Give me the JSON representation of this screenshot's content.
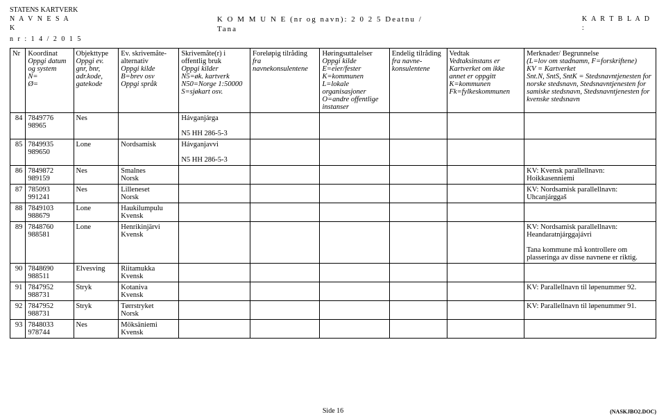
{
  "meta": {
    "agency": "STATENS KARTVERK",
    "navnesak_label": "N A V N E S A K",
    "kommune_label": "K O M M U N E  (nr og navn):",
    "kommune_value": "2 0 2 5   Deatnu / Tana",
    "kartblad_label": "K A R T B L A D :",
    "nr_line": "n r : 1 4 / 2 0 1 5"
  },
  "headers": {
    "nr": "Nr",
    "koordinat": "Koordinat\nOppgi datum og system\nN=\nØ=",
    "objekttype": "Objekttype\nOppgi ev. gnr, bnr, adr.kode, gatekode",
    "alternativ": "Ev. skrivemåte-alternativ\nOppgi kilde\nB=brev   osv\nOppgi språk",
    "skrivemaate": "Skrivemåte(r) i offentlig bruk\nOppgi kilder\nN5=øk. kartverk\nN50=Norge 1:50000\nS=sjøkart   osv.",
    "forelopig": "Foreløpig tilråding\nfra navnekonsulentene",
    "horing": "Høringsuttalelser\nOppgi kilde\nE=eier/fester\nK=kommunen\nL=lokale organisasjoner\nO=andre offentlige instanser",
    "endelig": "Endelig tilråding\nfra navne-konsulentene",
    "vedtak": "Vedtak\nVedtaksinstans er Kartverket om ikke annet er oppgitt\nK=kommunen\nFk=fylkeskommunen",
    "merknader": "Merknader/ Begrunnelse\n(L=lov om stadnamn, F=forskriftene)\nKV = Kartverket\nSnt.N, SntS, SntK = Stedsnavntjenesten for norske stedsnavn, Stedsnavntjenesten for samiske stedsnavn, Stedsnavntjenesten for kvenske stedsnavn"
  },
  "rows": [
    {
      "nr": "84",
      "koord": "7849776\n98965",
      "obj": "Nes",
      "alt": "",
      "skr": "Hávganjárga\n\nN5 HH 286-5-3",
      "merk": ""
    },
    {
      "nr": "85",
      "koord": "7849935\n989650",
      "obj": "Lone",
      "alt": "Nordsamisk",
      "skr": "Hávganjavvi\n\nN5 HH 286-5-3",
      "merk": ""
    },
    {
      "nr": "86",
      "koord": "7849872\n989159",
      "obj": "Nes",
      "alt": "Smalnes\nNorsk",
      "skr": "",
      "merk": "KV: Kvensk parallellnavn: Hoikkasenniemi"
    },
    {
      "nr": "87",
      "koord": "785093\n991241",
      "obj": "Nes",
      "alt": "Lilleneset\nNorsk",
      "skr": "",
      "merk": "KV: Nordsamisk parallellnavn: Uhcanjárggaš"
    },
    {
      "nr": "88",
      "koord": "7849103\n988679",
      "obj": "Lone",
      "alt": "Haukilumpulu\nKvensk",
      "skr": "",
      "merk": ""
    },
    {
      "nr": "89",
      "koord": "7848760\n988581",
      "obj": "Lone",
      "alt": "Henrikinjärvi\nKvensk",
      "skr": "",
      "merk": "KV: Nordsamisk parallellnavn: Heandaratnjárggajávri\n\nTana kommune må kontrollere om plasseringa av disse navnene er riktig."
    },
    {
      "nr": "90",
      "koord": "7848690\n988511",
      "obj": "Elvesving",
      "alt": "Riitamukka\nKvensk",
      "skr": "",
      "merk": ""
    },
    {
      "nr": "91",
      "koord": "7847952\n988731",
      "obj": "Stryk",
      "alt": "Kotaniva\nKvensk",
      "skr": "",
      "merk": "KV: Parallellnavn til løpenummer 92."
    },
    {
      "nr": "92",
      "koord": "7847952\n988731",
      "obj": "Stryk",
      "alt": "Tørrstryket\nNorsk",
      "skr": "",
      "merk": "KV: Parallellnavn til løpenummer 91."
    },
    {
      "nr": "93",
      "koord": "7848033\n978744",
      "obj": "Nes",
      "alt": "Möksäniemi\nKvensk",
      "skr": "",
      "merk": ""
    }
  ],
  "footer": {
    "page": "Side 16",
    "doc": "(NASKJBO2.DOC)"
  }
}
